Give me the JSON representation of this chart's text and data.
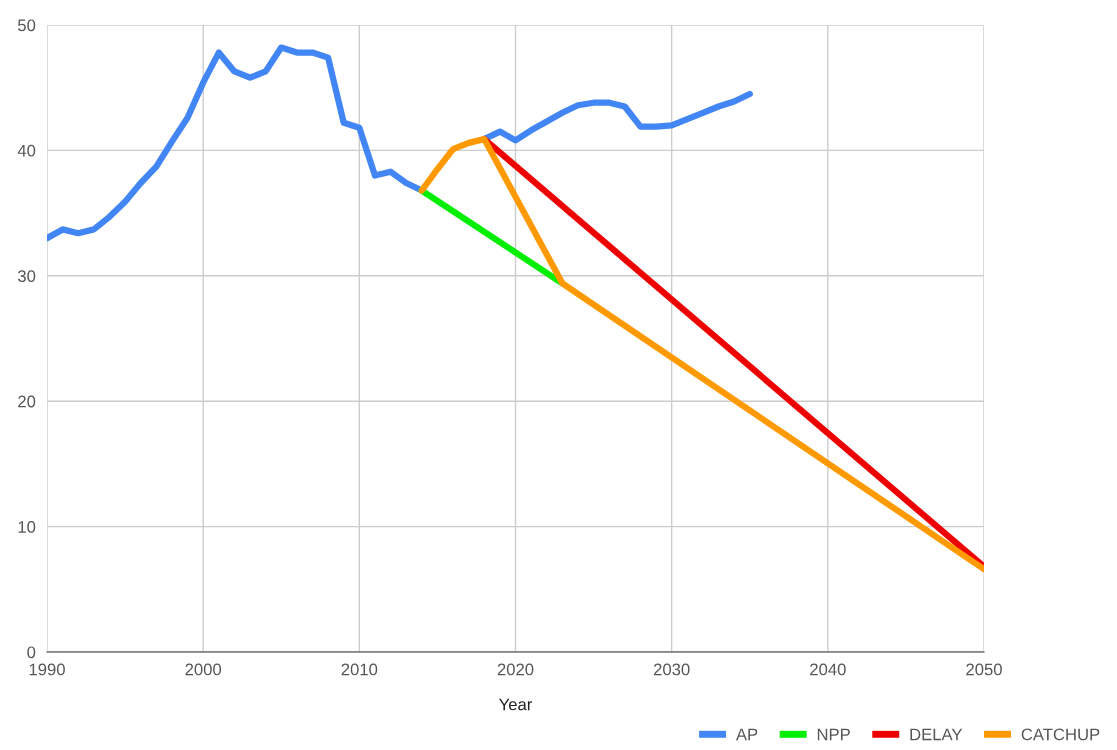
{
  "chart_data": {
    "type": "line",
    "xlabel": "Year",
    "xlim": [
      1990,
      2050
    ],
    "xticks": [
      1990,
      2000,
      2010,
      2020,
      2030,
      2040,
      2050
    ],
    "ylim": [
      0,
      50
    ],
    "yticks": [
      0,
      10,
      20,
      30,
      40,
      50
    ],
    "grid": true,
    "legend": "bottom right",
    "marker": "none",
    "line_style": "solid",
    "series": [
      {
        "name": "AP",
        "color": "#4285f4",
        "x": [
          1990,
          1991,
          1992,
          1993,
          1994,
          1995,
          1996,
          1997,
          1998,
          1999,
          2000,
          2001,
          2002,
          2003,
          2004,
          2005,
          2006,
          2007,
          2008,
          2009,
          2010,
          2011,
          2012,
          2013,
          2014,
          2015,
          2016,
          2017,
          2018,
          2019,
          2020,
          2021,
          2022,
          2023,
          2024,
          2025,
          2026,
          2027,
          2028,
          2029,
          2030,
          2031,
          2032,
          2033,
          2034,
          2035
        ],
        "values": [
          33.0,
          33.7,
          33.4,
          33.7,
          34.7,
          35.9,
          37.4,
          38.7,
          40.7,
          42.6,
          45.4,
          47.8,
          46.3,
          45.8,
          46.3,
          48.2,
          47.8,
          47.8,
          47.4,
          42.2,
          41.8,
          38.0,
          38.3,
          37.4,
          36.8,
          null,
          null,
          null,
          40.9,
          41.5,
          40.8,
          41.6,
          42.3,
          43.0,
          43.6,
          43.8,
          43.8,
          43.5,
          41.9,
          41.9,
          42.0,
          42.5,
          43.0,
          43.5,
          43.9,
          44.5
        ]
      },
      {
        "name": "NPP",
        "color": "#00ee00",
        "x": [
          2014,
          2023
        ],
        "values": [
          36.8,
          29.4
        ]
      },
      {
        "name": "DELAY",
        "color": "#ee0000",
        "x": [
          2018,
          2050
        ],
        "values": [
          40.9,
          6.8
        ]
      },
      {
        "name": "CATCHUP",
        "color": "#ff9900",
        "x": [
          2014,
          2015,
          2016,
          2017,
          2018,
          2023,
          2050
        ],
        "values": [
          36.8,
          38.5,
          40.1,
          40.6,
          40.9,
          29.4,
          6.6
        ]
      }
    ]
  }
}
